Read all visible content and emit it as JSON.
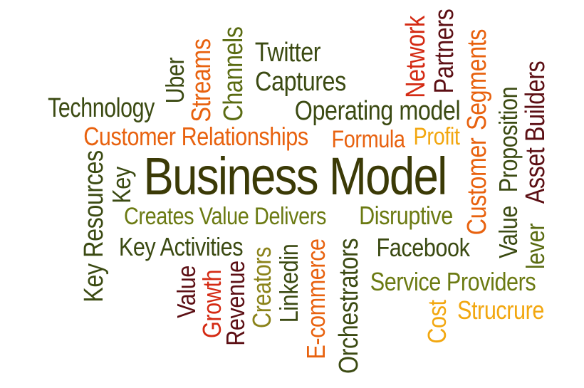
{
  "colors": {
    "olive": "#4a4a0a",
    "orange": "#e8620f",
    "maroon": "#5c0f14",
    "red": "#d42a13",
    "yellow": "#f2a710",
    "khaki": "#8a8219",
    "darkgreen": "#3b4a12"
  },
  "words": {
    "business_model": "Business Model",
    "technology": "Technology",
    "uber": "Uber",
    "streams": "Streams",
    "channels": "Channels",
    "twitter": "Twitter",
    "captures": "Captures",
    "network": "Network",
    "partners": "Partners",
    "segments": "Segments",
    "asset_builders": "Asset Builders",
    "operating_model": "Operating model",
    "customer_relationships": "Customer Relationships",
    "formula": "Formula",
    "profit": "Profit",
    "customer": "Customer",
    "proposition": "Proposition",
    "value_right": "Value",
    "lever": "lever",
    "key_resources": "Key Resources",
    "key": "Key",
    "creates_value_delivers": "Creates Value Delivers",
    "disruptive": "Disruptive",
    "key_activities": "Key Activities",
    "facebook": "Facebook",
    "value_left": "Value",
    "growth": "Growth",
    "revenue": "Revenue",
    "creators": "Creators",
    "linkedin": "Linkedin",
    "e_commerce": "E-commerce",
    "orchestrators": "Orchestrators",
    "service_providers": "Service Providers",
    "cost": "Cost",
    "strucrure": "Strucrure"
  }
}
